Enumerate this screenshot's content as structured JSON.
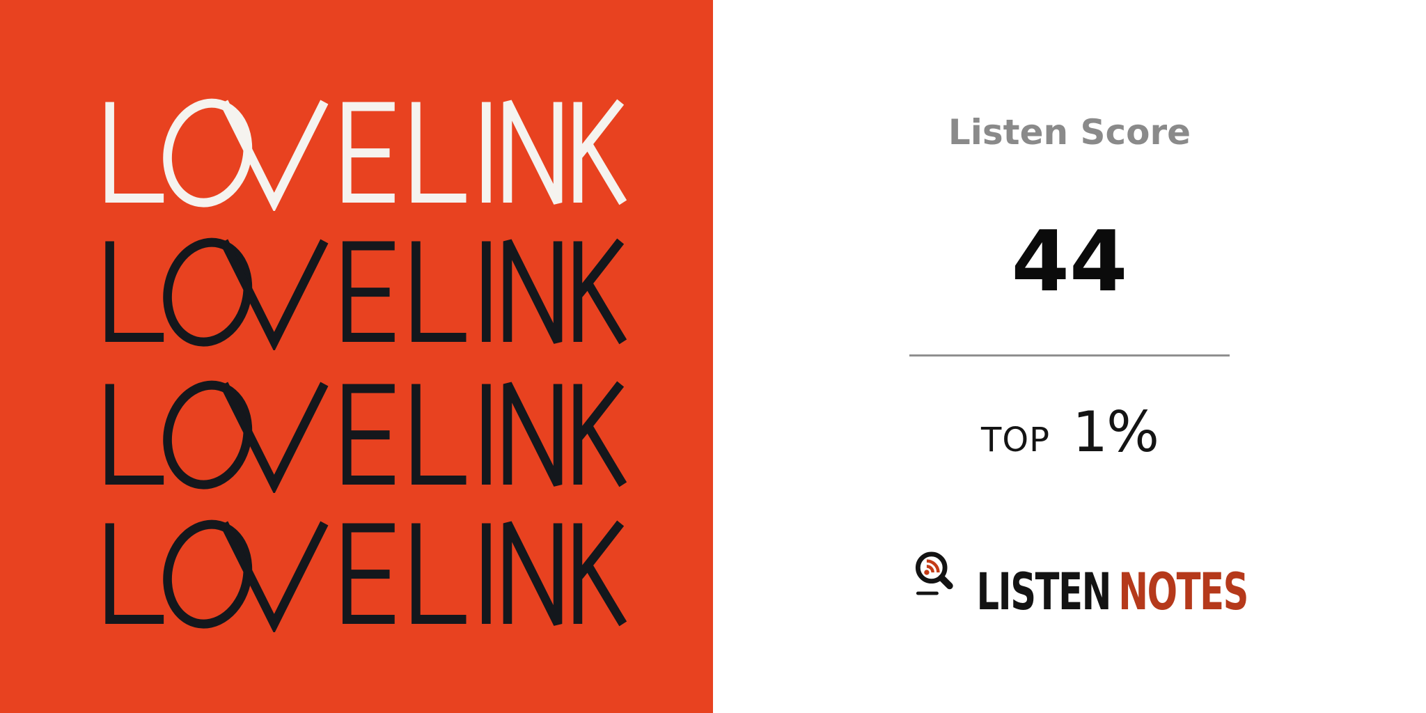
{
  "cover": {
    "wordmark": "LOVELINK",
    "background_color": "#E84220",
    "rows": [
      {
        "color": "#F5F3EF"
      },
      {
        "color": "#14171C"
      },
      {
        "color": "#14171C"
      },
      {
        "color": "#14171C"
      }
    ]
  },
  "score_panel": {
    "title": "Listen Score",
    "score": "44",
    "rank": {
      "label": "TOP",
      "value": "1%"
    },
    "brand": {
      "word1": "LISTEN",
      "word2": "NOTES",
      "icon": "magnifier-rss-icon"
    }
  },
  "colors": {
    "title_gray": "#8A8A8A",
    "score_black": "#0B0B0B",
    "rank_black": "#141414",
    "divider_gray": "#8F8F8F",
    "brand_black": "#131313",
    "brand_red": "#B5391B",
    "rss_orange": "#C43B16",
    "cover_bg": "#E84220"
  }
}
